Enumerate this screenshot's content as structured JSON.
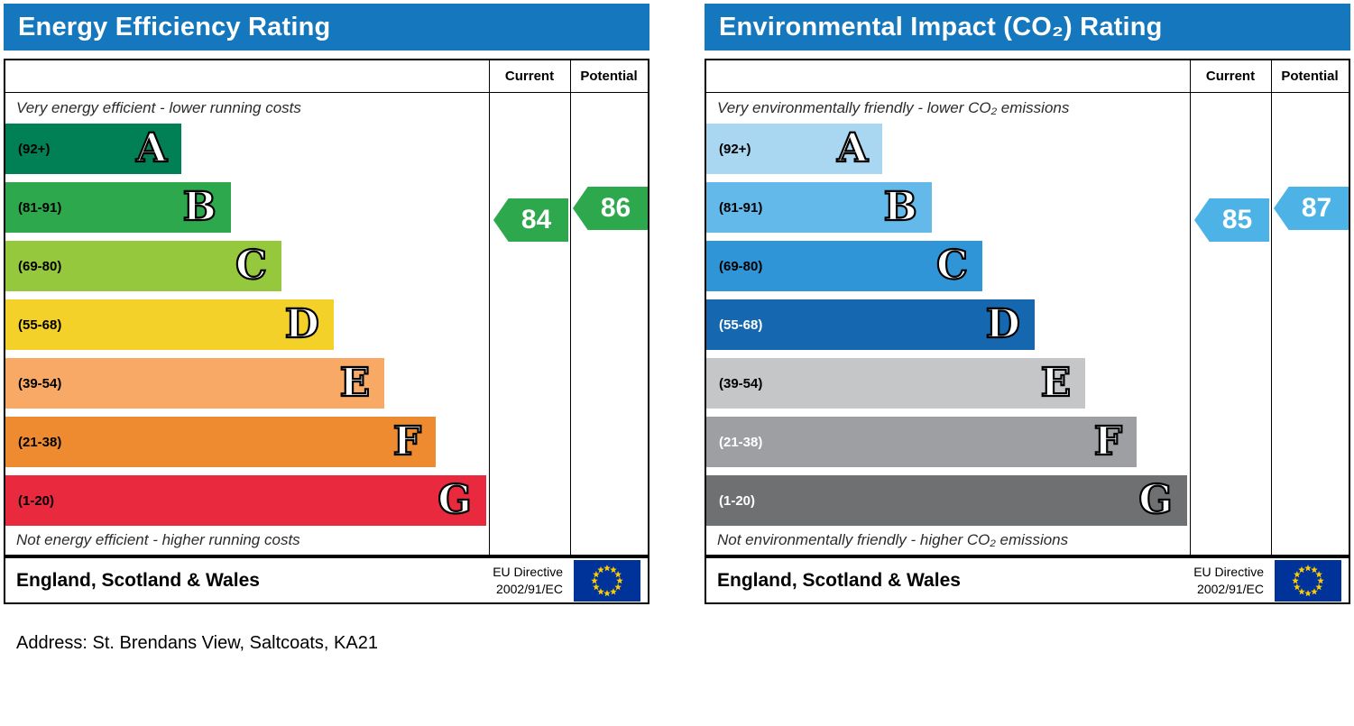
{
  "address_line": "Address: St. Brendans View, Saltcoats, KA21",
  "chart_data": [
    {
      "type": "bar",
      "title": "Energy Efficiency Rating",
      "categories": [
        "A (92+)",
        "B (81-91)",
        "C (69-80)",
        "D (55-68)",
        "E (39-54)",
        "F (21-38)",
        "G (1-20)"
      ],
      "series": [
        {
          "name": "Current",
          "value": 84,
          "band": "B"
        },
        {
          "name": "Potential",
          "value": 86,
          "band": "B"
        }
      ],
      "scale": [
        1,
        100
      ]
    },
    {
      "type": "bar",
      "title": "Environmental Impact (CO₂) Rating",
      "categories": [
        "A (92+)",
        "B (81-91)",
        "C (69-80)",
        "D (55-68)",
        "E (39-54)",
        "F (21-38)",
        "G (1-20)"
      ],
      "series": [
        {
          "name": "Current",
          "value": 85,
          "band": "B"
        },
        {
          "name": "Potential",
          "value": 87,
          "band": "B"
        }
      ],
      "scale": [
        1,
        100
      ]
    }
  ],
  "charts": [
    {
      "id": "energy-efficiency",
      "title": "Energy Efficiency Rating",
      "header_color": "#1577bd",
      "columns": {
        "current": "Current",
        "potential": "Potential"
      },
      "top_caption": "Very energy efficient - lower running costs",
      "bottom_caption": "Not energy efficient - higher running costs",
      "region": "England, Scotland & Wales",
      "directive_line1": "EU Directive",
      "directive_line2": "2002/91/EC",
      "bands": [
        {
          "range": "(92+)",
          "letter": "A",
          "color": "#008054",
          "width_pct": 36.4,
          "label_color": "#000000"
        },
        {
          "range": "(81-91)",
          "letter": "B",
          "color": "#2ea84d",
          "width_pct": 46.6,
          "label_color": "#000000"
        },
        {
          "range": "(69-80)",
          "letter": "C",
          "color": "#95c83c",
          "width_pct": 57.1,
          "label_color": "#000000"
        },
        {
          "range": "(55-68)",
          "letter": "D",
          "color": "#f3d129",
          "width_pct": 67.9,
          "label_color": "#000000"
        },
        {
          "range": "(39-54)",
          "letter": "E",
          "color": "#f9a966",
          "width_pct": 78.4,
          "label_color": "#000000"
        },
        {
          "range": "(21-38)",
          "letter": "F",
          "color": "#ee8b31",
          "width_pct": 89.0,
          "label_color": "#000000"
        },
        {
          "range": "(1-20)",
          "letter": "G",
          "color": "#e9293d",
          "width_pct": 99.4,
          "label_color": "#000000"
        }
      ],
      "current": {
        "value": "84",
        "color": "#2ea84d"
      },
      "potential": {
        "value": "86",
        "color": "#2ea84d"
      }
    },
    {
      "id": "environmental-impact",
      "title": "Environmental Impact (CO₂) Rating",
      "header_color": "#1577bd",
      "columns": {
        "current": "Current",
        "potential": "Potential"
      },
      "top_caption": "Very environmentally friendly - lower CO₂ emissions",
      "bottom_caption": "Not environmentally friendly - higher CO₂ emissions",
      "region": "England, Scotland & Wales",
      "directive_line1": "EU Directive",
      "directive_line2": "2002/91/EC",
      "bands": [
        {
          "range": "(92+)",
          "letter": "A",
          "color": "#a9d7f1",
          "width_pct": 36.4,
          "label_color": "#000000"
        },
        {
          "range": "(81-91)",
          "letter": "B",
          "color": "#63b9e9",
          "width_pct": 46.6,
          "label_color": "#000000"
        },
        {
          "range": "(69-80)",
          "letter": "C",
          "color": "#2f95d6",
          "width_pct": 57.1,
          "label_color": "#000000"
        },
        {
          "range": "(55-68)",
          "letter": "D",
          "color": "#1567b0",
          "width_pct": 67.9,
          "label_color": "#ffffff"
        },
        {
          "range": "(39-54)",
          "letter": "E",
          "color": "#c5c6c8",
          "width_pct": 78.4,
          "label_color": "#000000"
        },
        {
          "range": "(21-38)",
          "letter": "F",
          "color": "#9d9fa2",
          "width_pct": 89.0,
          "label_color": "#ffffff"
        },
        {
          "range": "(1-20)",
          "letter": "G",
          "color": "#6e7072",
          "width_pct": 99.4,
          "label_color": "#ffffff"
        }
      ],
      "current": {
        "value": "85",
        "color": "#4db3e6"
      },
      "potential": {
        "value": "87",
        "color": "#4db3e6"
      }
    }
  ],
  "eu_flag": {
    "background": "#003399",
    "star_color": "#ffcc00"
  }
}
